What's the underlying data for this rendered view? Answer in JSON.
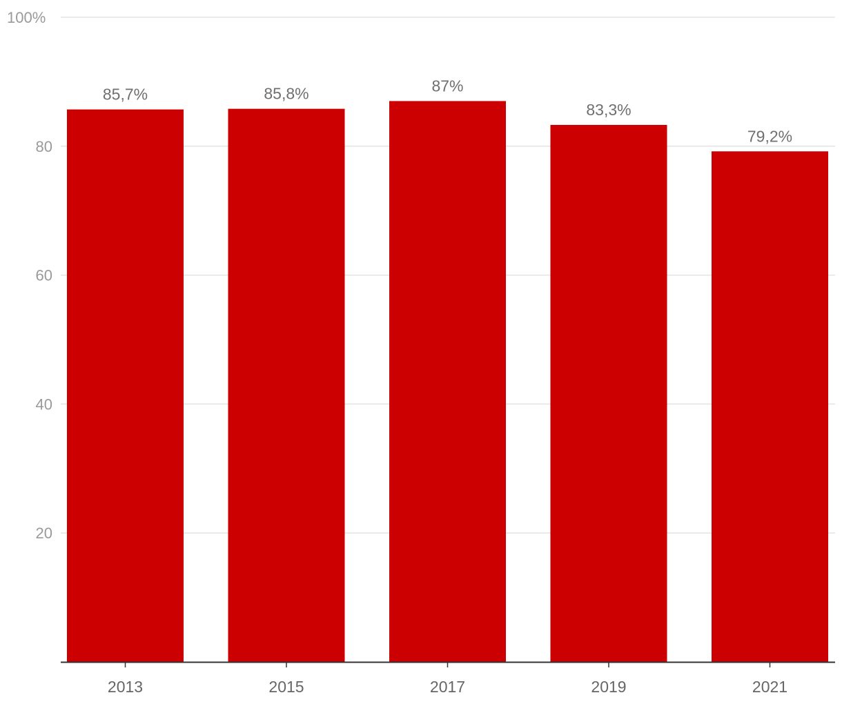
{
  "chart_data": {
    "type": "bar",
    "categories": [
      "2013",
      "2015",
      "2017",
      "2019",
      "2021"
    ],
    "values": [
      85.7,
      85.8,
      87,
      83.3,
      79.2
    ],
    "data_labels": [
      "85,7%",
      "85,8%",
      "87%",
      "83,3%",
      "79,2%"
    ],
    "title": "",
    "xlabel": "",
    "ylabel": "",
    "ylim": [
      0,
      100
    ],
    "y_ticks": [
      {
        "value": 100,
        "label": "100%"
      },
      {
        "value": 80,
        "label": "80"
      },
      {
        "value": 60,
        "label": "60"
      },
      {
        "value": 40,
        "label": "40"
      },
      {
        "value": 20,
        "label": "20"
      }
    ],
    "grid": true,
    "legend": "none",
    "colors": {
      "bar": "#cc0000",
      "grid": "#e3e3e3",
      "axis": "#333333"
    }
  }
}
